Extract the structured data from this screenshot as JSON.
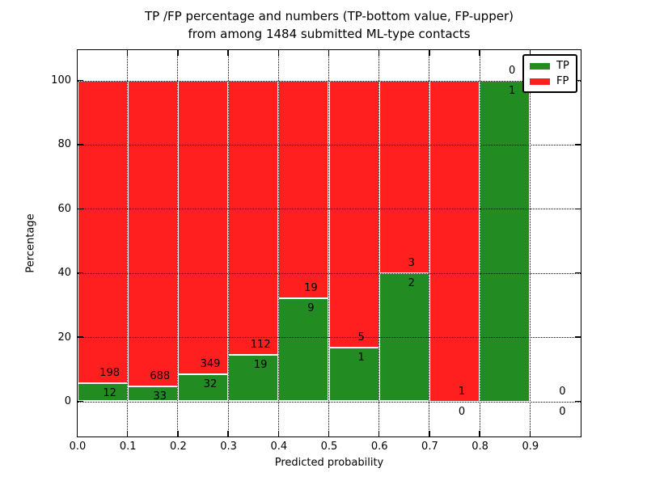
{
  "chart_data": {
    "type": "bar",
    "stacked": true,
    "normalized_to_100": true,
    "title_line1": "TP /FP percentage and numbers (TP-bottom value, FP-upper)",
    "title_line2": "from among 1484 submitted ML-type contacts",
    "total_contacts": 1484,
    "xlabel": "Predicted probability",
    "ylabel": "Percentage",
    "x_tick_labels": [
      "0.0",
      "0.1",
      "0.2",
      "0.3",
      "0.4",
      "0.5",
      "0.6",
      "0.7",
      "0.8",
      "0.9"
    ],
    "y_ticks": [
      0,
      20,
      40,
      60,
      80,
      100
    ],
    "xlim": [
      0.0,
      1.0
    ],
    "ylim": [
      -10.8,
      109.6
    ],
    "grid": "dotted black, drawn above bars",
    "colors": {
      "tp": "#228b22",
      "fp": "#ff1f1f",
      "bar_edge": "#ffffff"
    },
    "legend": {
      "position": "upper right",
      "entries": [
        {
          "label": "TP",
          "color": "#228b22"
        },
        {
          "label": "FP",
          "color": "#ff1f1f"
        }
      ]
    },
    "bins": [
      {
        "x0": 0.0,
        "x1": 0.1,
        "tp": 12,
        "fp": 198
      },
      {
        "x0": 0.1,
        "x1": 0.2,
        "tp": 33,
        "fp": 688
      },
      {
        "x0": 0.2,
        "x1": 0.3,
        "tp": 32,
        "fp": 349
      },
      {
        "x0": 0.3,
        "x1": 0.4,
        "tp": 19,
        "fp": 112
      },
      {
        "x0": 0.4,
        "x1": 0.5,
        "tp": 9,
        "fp": 19
      },
      {
        "x0": 0.5,
        "x1": 0.6,
        "tp": 1,
        "fp": 5
      },
      {
        "x0": 0.6,
        "x1": 0.7,
        "tp": 2,
        "fp": 3
      },
      {
        "x0": 0.7,
        "x1": 0.8,
        "tp": 0,
        "fp": 1
      },
      {
        "x0": 0.8,
        "x1": 0.9,
        "tp": 1,
        "fp": 0
      },
      {
        "x0": 0.9,
        "x1": 1.0,
        "tp": 0,
        "fp": 0
      }
    ]
  }
}
